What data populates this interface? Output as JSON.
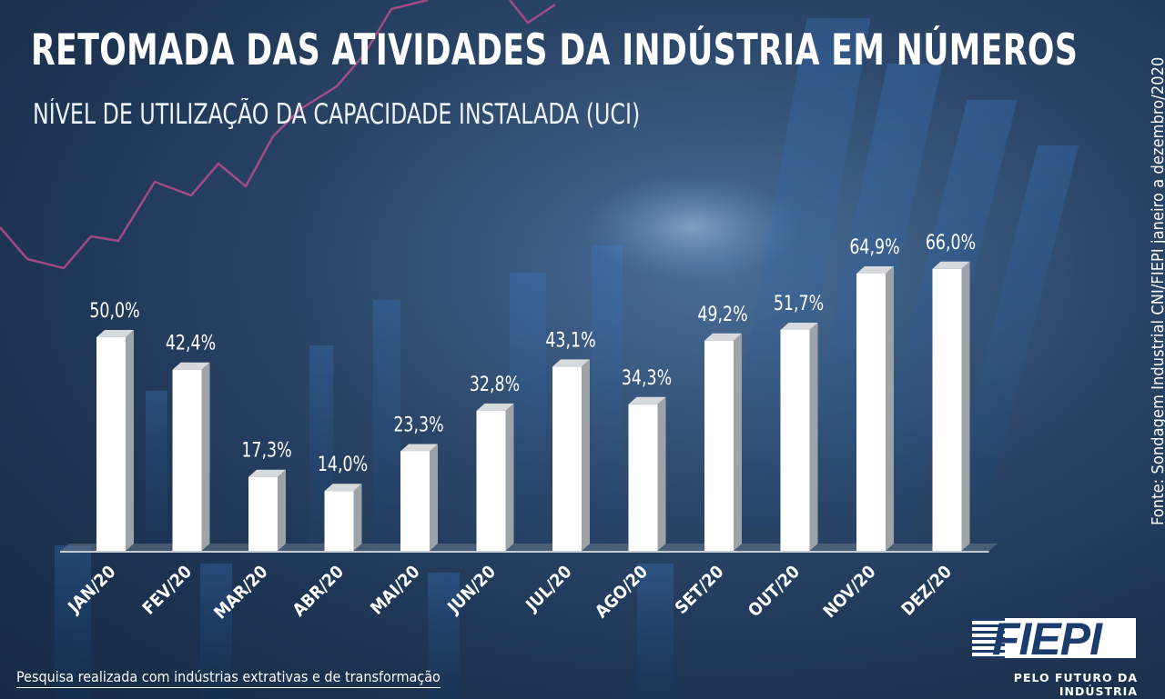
{
  "title": "RETOMADA DAS ATIVIDADES DA INDÚSTRIA EM NÚMEROS",
  "subtitle": "NÍVEL DE UTILIZAÇÃO DA CAPACIDADE INSTALADA (UCI)",
  "source": "Fonte: Sondagem Industrial CNI/FIEPI janeiro a dezembro/2020",
  "footnote": "Pesquisa realizada com indústrias extrativas e de transformação",
  "logo": {
    "name": "FIEPI",
    "tagline": "PELO FUTURO DA INDÚSTRIA"
  },
  "colors": {
    "bar_front": "#ffffff",
    "bar_side": "#9ea3a8",
    "bar_top": "#d7dadd",
    "background": "#22395a"
  },
  "chart_data": {
    "type": "bar",
    "categories": [
      "JAN/20",
      "FEV/20",
      "MAR/20",
      "ABR/20",
      "MAI/20",
      "JUN/20",
      "JUL/20",
      "AGO/20",
      "SET/20",
      "OUT/20",
      "NOV/20",
      "DEZ/20"
    ],
    "values": [
      50.0,
      42.4,
      17.3,
      14.0,
      23.3,
      32.8,
      43.1,
      34.3,
      49.2,
      51.7,
      64.9,
      66.0
    ],
    "value_labels": [
      "50,0%",
      "42,4%",
      "17,3%",
      "14,0%",
      "23,3%",
      "32,8%",
      "43,1%",
      "34,3%",
      "49,2%",
      "51,7%",
      "64,9%",
      "66,0%"
    ],
    "title": "RETOMADA DAS ATIVIDADES DA INDÚSTRIA EM NÚMEROS",
    "subtitle": "NÍVEL DE UTILIZAÇÃO DA CAPACIDADE INSTALADA (UCI)",
    "xlabel": "",
    "ylabel": "",
    "ylim": [
      0,
      100
    ],
    "grid": false,
    "style": "3d-bars"
  }
}
